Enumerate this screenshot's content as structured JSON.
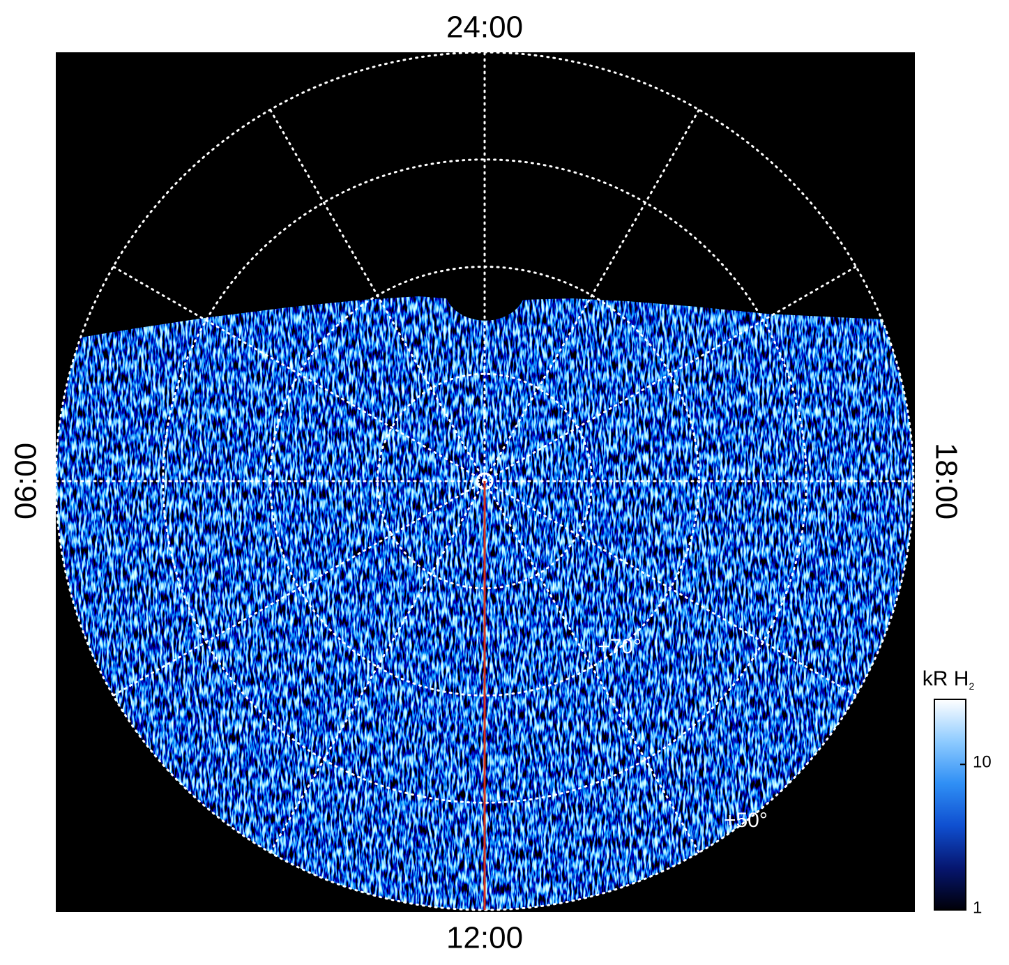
{
  "chart_data": {
    "type": "polar-map",
    "local_time_labels": {
      "top": "24:00",
      "left": "06:00",
      "right": "18:00",
      "bottom": "12:00"
    },
    "rlim": [
      90,
      50
    ],
    "grid_latitudes": [
      80,
      70,
      60,
      50
    ],
    "grid_local_times": [
      0,
      2,
      4,
      6,
      8,
      10,
      12,
      14,
      16,
      18,
      20,
      22
    ],
    "latitude_labels": [
      {
        "value": 70,
        "label": "+70°",
        "local_time": 14.6
      },
      {
        "value": 50,
        "label": "+50°",
        "local_time": 14.5
      }
    ],
    "highlight_meridian": {
      "local_time": 12,
      "color": "#d8341a"
    },
    "colorbar": {
      "label": "kR H",
      "label_subscript": "2",
      "scale": "log",
      "lim": [
        1,
        28
      ],
      "ticks": [
        1,
        10
      ],
      "colors": [
        "#000008",
        "#061670",
        "#0f4fd0",
        "#2f8ff5",
        "#8ecbff",
        "#ffffff"
      ]
    }
  }
}
